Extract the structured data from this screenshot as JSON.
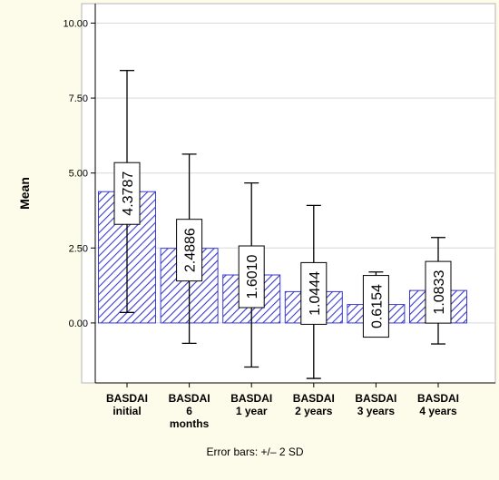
{
  "chart_data": {
    "type": "bar",
    "categories": [
      [
        "BASDAI",
        "initial"
      ],
      [
        "BASDAI",
        "6",
        "months"
      ],
      [
        "BASDAI",
        "1 year"
      ],
      [
        "BASDAI",
        "2 years"
      ],
      [
        "BASDAI",
        "3 years"
      ],
      [
        "BASDAI",
        "4 years"
      ]
    ],
    "values": [
      4.3787,
      2.4886,
      1.601,
      1.0444,
      0.6154,
      1.0833
    ],
    "value_labels": [
      "4.3787",
      "2.4886",
      "1.6010",
      "1.0444",
      "0.6154",
      "1.0833"
    ],
    "error_low": [
      0.35,
      -0.68,
      -1.47,
      -1.85,
      -0.45,
      -0.7
    ],
    "error_high": [
      8.42,
      5.63,
      4.67,
      3.92,
      1.7,
      2.85
    ],
    "ylabel": "Mean",
    "xlabel": "",
    "ylim": [
      -2.0,
      10.65
    ],
    "yticks": [
      0.0,
      2.5,
      5.0,
      7.5,
      10.0
    ],
    "ytick_labels": [
      "0.00",
      "2.50",
      "5.00",
      "7.50",
      "10.00"
    ],
    "grid": "horizontal",
    "footnote": "Error bars: +/– 2 SD",
    "colors": {
      "bar_hatch": "#3a3ad0",
      "bar_fill": "#ffffff",
      "plot_background": "#ffffff",
      "page_background": "#fdfbe9",
      "grid": "#d9d9d9"
    }
  }
}
